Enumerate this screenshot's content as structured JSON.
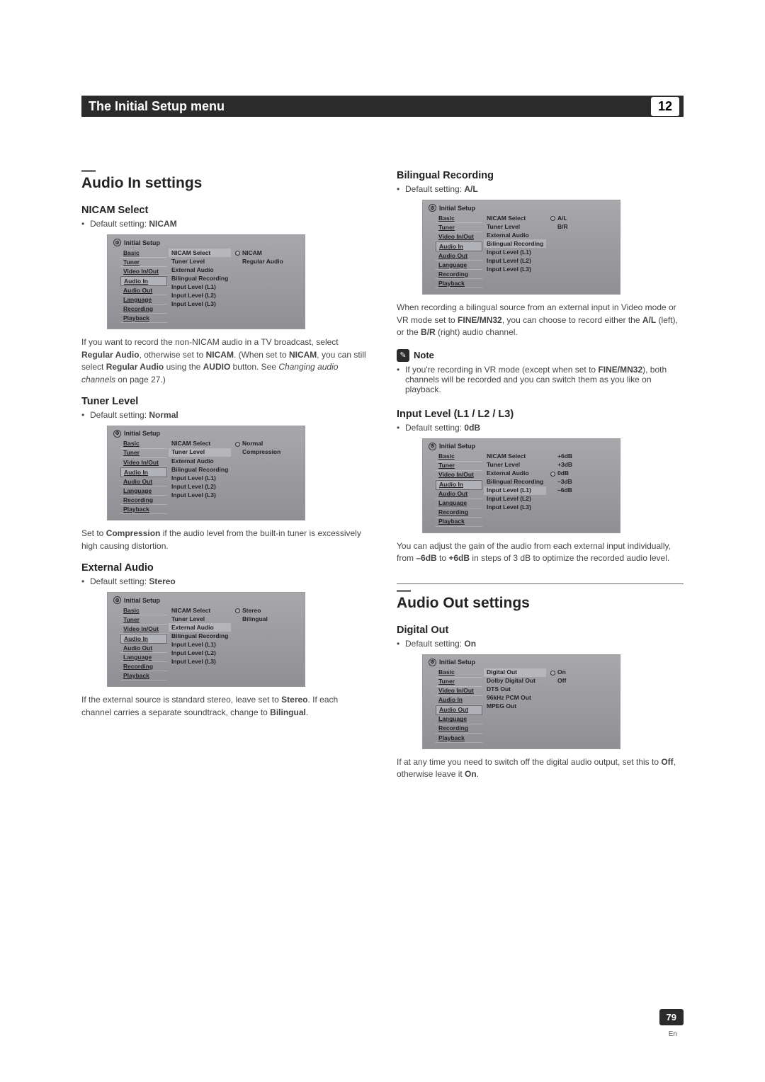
{
  "header": {
    "title": "The Initial Setup menu",
    "chapter": "12"
  },
  "page": {
    "number": "79",
    "lang": "En"
  },
  "left": {
    "section_title": "Audio In settings",
    "nicam": {
      "heading": "NICAM Select",
      "default_label": "Default setting: ",
      "default_value": "NICAM",
      "body_parts": {
        "p1a": "If you want to record the non-NICAM audio in a TV broadcast, select ",
        "p1b": "Regular Audio",
        "p1c": ", otherwise set to ",
        "p1d": "NICAM",
        "p1e": ". (When set to ",
        "p1f": "NICAM",
        "p1g": ", you can still select ",
        "p1h": "Regular Audio",
        "p1i": " using the ",
        "p1j": "AUDIO",
        "p1k": " button. See ",
        "p1l": "Changing audio channels",
        "p1m": " on page 27.)"
      },
      "menu": {
        "title": "Initial Setup",
        "sidebar": [
          "Basic",
          "Tuner",
          "Video In/Out",
          "Audio In",
          "Audio Out",
          "Language",
          "Recording",
          "Playback"
        ],
        "active_sidebar": "Audio In",
        "middle": [
          "NICAM Select",
          "Tuner Level",
          "External Audio",
          "Bilingual Recording",
          "Input Level (L1)",
          "Input Level (L2)",
          "Input Level (L3)"
        ],
        "middle_boxed": "NICAM Select",
        "right": [
          "NICAM",
          "Regular Audio"
        ],
        "selected": "NICAM"
      }
    },
    "tuner": {
      "heading": "Tuner Level",
      "default_label": "Default setting: ",
      "default_value": "Normal",
      "body_parts": {
        "p1a": "Set to ",
        "p1b": "Compression",
        "p1c": " if the audio level from the built-in tuner is excessively high causing distortion."
      },
      "menu": {
        "title": "Initial Setup",
        "sidebar": [
          "Basic",
          "Tuner",
          "Video In/Out",
          "Audio In",
          "Audio Out",
          "Language",
          "Recording",
          "Playback"
        ],
        "active_sidebar": "Audio In",
        "middle": [
          "NICAM Select",
          "Tuner Level",
          "External Audio",
          "Bilingual Recording",
          "Input Level (L1)",
          "Input Level (L2)",
          "Input Level (L3)"
        ],
        "middle_boxed": "Tuner Level",
        "right": [
          "Normal",
          "Compression"
        ],
        "selected": "Normal"
      }
    },
    "external": {
      "heading": "External Audio",
      "default_label": "Default setting: ",
      "default_value": "Stereo",
      "body_parts": {
        "p1a": "If the external source is standard stereo, leave set to ",
        "p1b": "Stereo",
        "p1c": ". If each channel carries a separate soundtrack, change to ",
        "p1d": "Bilingual",
        "p1e": "."
      },
      "menu": {
        "title": "Initial Setup",
        "sidebar": [
          "Basic",
          "Tuner",
          "Video In/Out",
          "Audio In",
          "Audio Out",
          "Language",
          "Recording",
          "Playback"
        ],
        "active_sidebar": "Audio In",
        "middle": [
          "NICAM Select",
          "Tuner Level",
          "External Audio",
          "Bilingual Recording",
          "Input Level (L1)",
          "Input Level (L2)",
          "Input Level (L3)"
        ],
        "middle_boxed": "External Audio",
        "right": [
          "Stereo",
          "Bilingual"
        ],
        "selected": "Stereo"
      }
    }
  },
  "right": {
    "bilingual": {
      "heading": "Bilingual Recording",
      "default_label": "Default setting: ",
      "default_value": "A/L",
      "body_parts": {
        "p1a": "When recording a bilingual source from an external input in Video mode or VR mode set to ",
        "p1b": "FINE/MN32",
        "p1c": ", you can choose to record either the ",
        "p1d": "A/L",
        "p1e": " (left), or the ",
        "p1f": "B/R",
        "p1g": " (right) audio channel."
      },
      "note_label": "Note",
      "note_parts": {
        "n1a": "If you're recording in VR mode (except when set to ",
        "n1b": "FINE/MN32",
        "n1c": "), both channels will be recorded and you can switch them as you like on playback."
      },
      "menu": {
        "title": "Initial Setup",
        "sidebar": [
          "Basic",
          "Tuner",
          "Video In/Out",
          "Audio In",
          "Audio Out",
          "Language",
          "Recording",
          "Playback"
        ],
        "active_sidebar": "Audio In",
        "middle": [
          "NICAM Select",
          "Tuner Level",
          "External Audio",
          "Bilingual Recording",
          "Input Level (L1)",
          "Input Level (L2)",
          "Input Level (L3)"
        ],
        "middle_boxed": "Bilingual Recording",
        "right": [
          "A/L",
          "B/R"
        ],
        "selected": "A/L"
      }
    },
    "input_level": {
      "heading": "Input Level (L1 / L2 / L3)",
      "default_label": "Default setting: ",
      "default_value": "0dB",
      "body_parts": {
        "p1a": "You can adjust the gain of the audio from each external input individually, from ",
        "p1b": "–6dB",
        "p1c": " to ",
        "p1d": "+6dB",
        "p1e": " in steps of 3 dB to optimize the recorded audio level."
      },
      "menu": {
        "title": "Initial Setup",
        "sidebar": [
          "Basic",
          "Tuner",
          "Video In/Out",
          "Audio In",
          "Audio Out",
          "Language",
          "Recording",
          "Playback"
        ],
        "active_sidebar": "Audio In",
        "middle": [
          "NICAM Select",
          "Tuner Level",
          "External Audio",
          "Bilingual Recording",
          "Input Level (L1)",
          "Input Level (L2)",
          "Input Level (L3)"
        ],
        "middle_boxed": "Input Level (L1)",
        "right": [
          "+6dB",
          "+3dB",
          "0dB",
          "–3dB",
          "–6dB"
        ],
        "selected": "0dB"
      }
    },
    "audio_out": {
      "section_title": "Audio Out settings",
      "digital": {
        "heading": "Digital Out",
        "default_label": "Default setting: ",
        "default_value": "On",
        "body_parts": {
          "p1a": "If at any time you need to switch off the digital audio output, set this to ",
          "p1b": "Off",
          "p1c": ", otherwise leave it ",
          "p1d": "On",
          "p1e": "."
        },
        "menu": {
          "title": "Initial Setup",
          "sidebar": [
            "Basic",
            "Tuner",
            "Video In/Out",
            "Audio In",
            "Audio Out",
            "Language",
            "Recording",
            "Playback"
          ],
          "active_sidebar": "Audio Out",
          "middle": [
            "Digital Out",
            "Dolby Digital Out",
            "DTS Out",
            "96kHz PCM Out",
            "MPEG Out"
          ],
          "middle_boxed": "Digital Out",
          "right": [
            "On",
            "Off"
          ],
          "selected": "On"
        }
      }
    }
  }
}
